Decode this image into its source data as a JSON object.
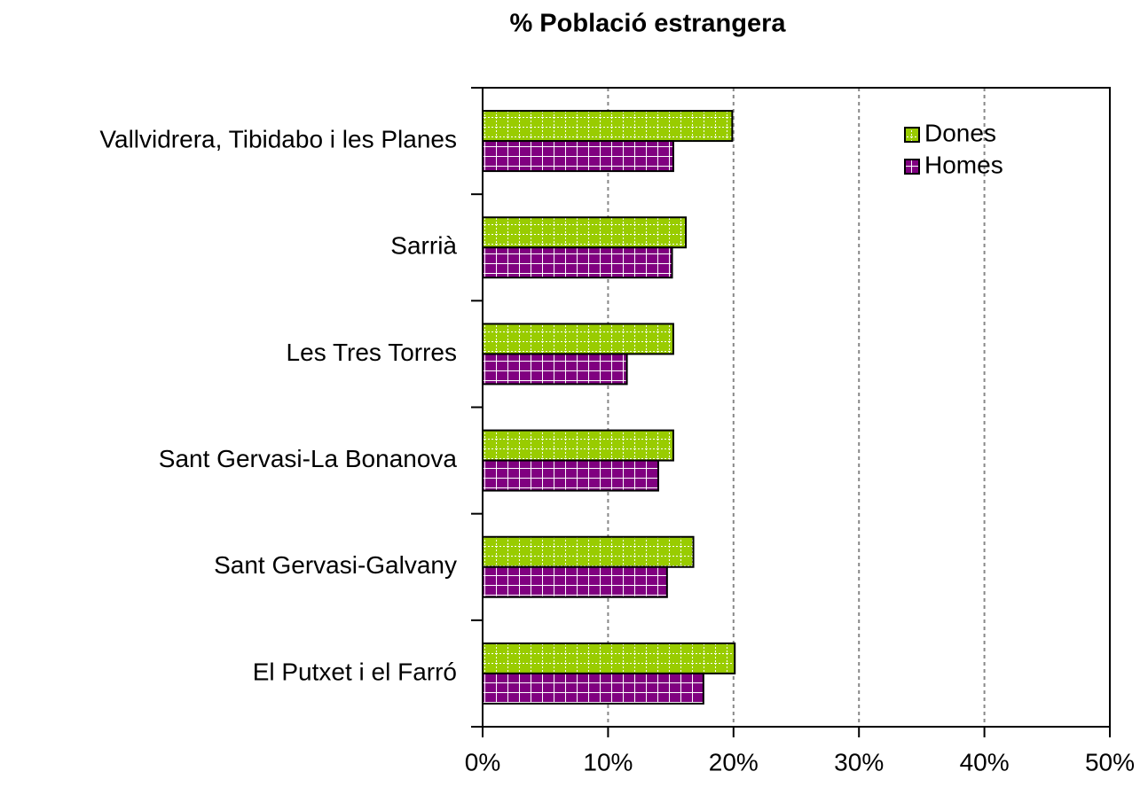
{
  "chart_data": {
    "type": "barh",
    "title": "% Població estrangera",
    "categories": [
      "Vallvidrera, Tibidabo i les Planes",
      "Sarrià",
      "Les Tres Torres",
      "Sant Gervasi-La Bonanova",
      "Sant Gervasi-Galvany",
      "El Putxet i el Farró"
    ],
    "series": [
      {
        "name": "Dones",
        "color": "#99cc00",
        "values": [
          19.9,
          16.2,
          15.2,
          15.2,
          16.8,
          20.1
        ]
      },
      {
        "name": "Homes",
        "color": "#800080",
        "values": [
          15.2,
          15.1,
          11.5,
          14.0,
          14.7,
          17.6
        ]
      }
    ],
    "xlim": [
      0,
      50
    ],
    "xticks": [
      {
        "value": 0,
        "label": "0%"
      },
      {
        "value": 10,
        "label": "10%"
      },
      {
        "value": 20,
        "label": "20%"
      },
      {
        "value": 30,
        "label": "30%"
      },
      {
        "value": 40,
        "label": "40%"
      },
      {
        "value": 50,
        "label": "50%"
      }
    ],
    "grid": true,
    "legend": "upper right"
  }
}
